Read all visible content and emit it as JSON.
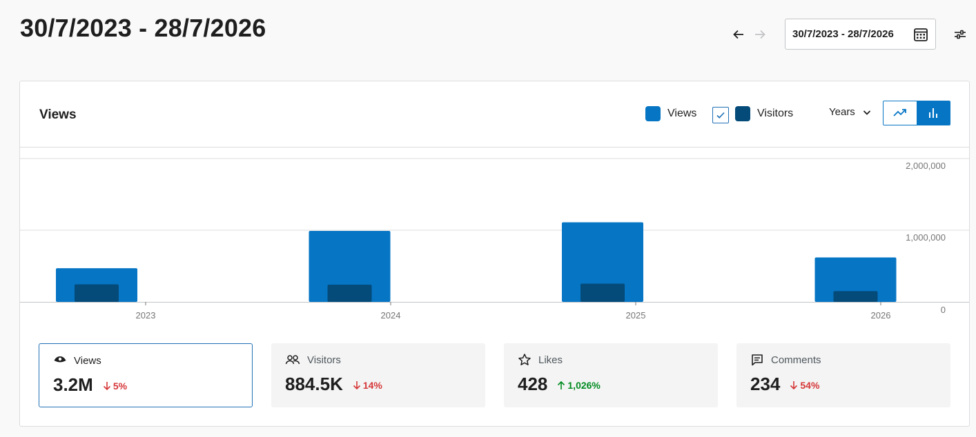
{
  "header": {
    "title": "30/7/2023 - 28/7/2026",
    "date_range": "30/7/2023 - 28/7/2026",
    "prev_icon": "arrow-left-icon",
    "next_icon": "arrow-right-icon",
    "calendar_icon": "calendar-icon",
    "settings_icon": "sliders-icon"
  },
  "card": {
    "title": "Views",
    "legend": {
      "views_label": "Views",
      "visitors_label": "Visitors",
      "visitors_checked": true
    },
    "period": "Years",
    "chart_modes": [
      "line",
      "bar"
    ],
    "active_mode": "bar"
  },
  "colors": {
    "views": "#0675c4",
    "visitors": "#044b7a",
    "accent": "#1e6fb5",
    "down": "#d63638",
    "up": "#008a20"
  },
  "chart_data": {
    "type": "bar",
    "categories": [
      "2023",
      "2024",
      "2025",
      "2026"
    ],
    "series": [
      {
        "name": "Views",
        "values": [
          470000,
          990000,
          1110000,
          620000
        ]
      },
      {
        "name": "Visitors",
        "values": [
          245000,
          240000,
          255000,
          150000
        ]
      }
    ],
    "y_ticks": [
      "2,000,000",
      "1,000,000",
      "0"
    ],
    "ylim": [
      0,
      2000000
    ],
    "grid": true,
    "y_axis_side": "right"
  },
  "stats": [
    {
      "icon": "eye-icon",
      "label": "Views",
      "value": "3.2M",
      "delta": "5%",
      "direction": "down",
      "active": true
    },
    {
      "icon": "people-icon",
      "label": "Visitors",
      "value": "884.5K",
      "delta": "14%",
      "direction": "down",
      "active": false
    },
    {
      "icon": "star-icon",
      "label": "Likes",
      "value": "428",
      "delta": "1,026%",
      "direction": "up",
      "active": false
    },
    {
      "icon": "comment-icon",
      "label": "Comments",
      "value": "234",
      "delta": "54%",
      "direction": "down",
      "active": false
    }
  ]
}
